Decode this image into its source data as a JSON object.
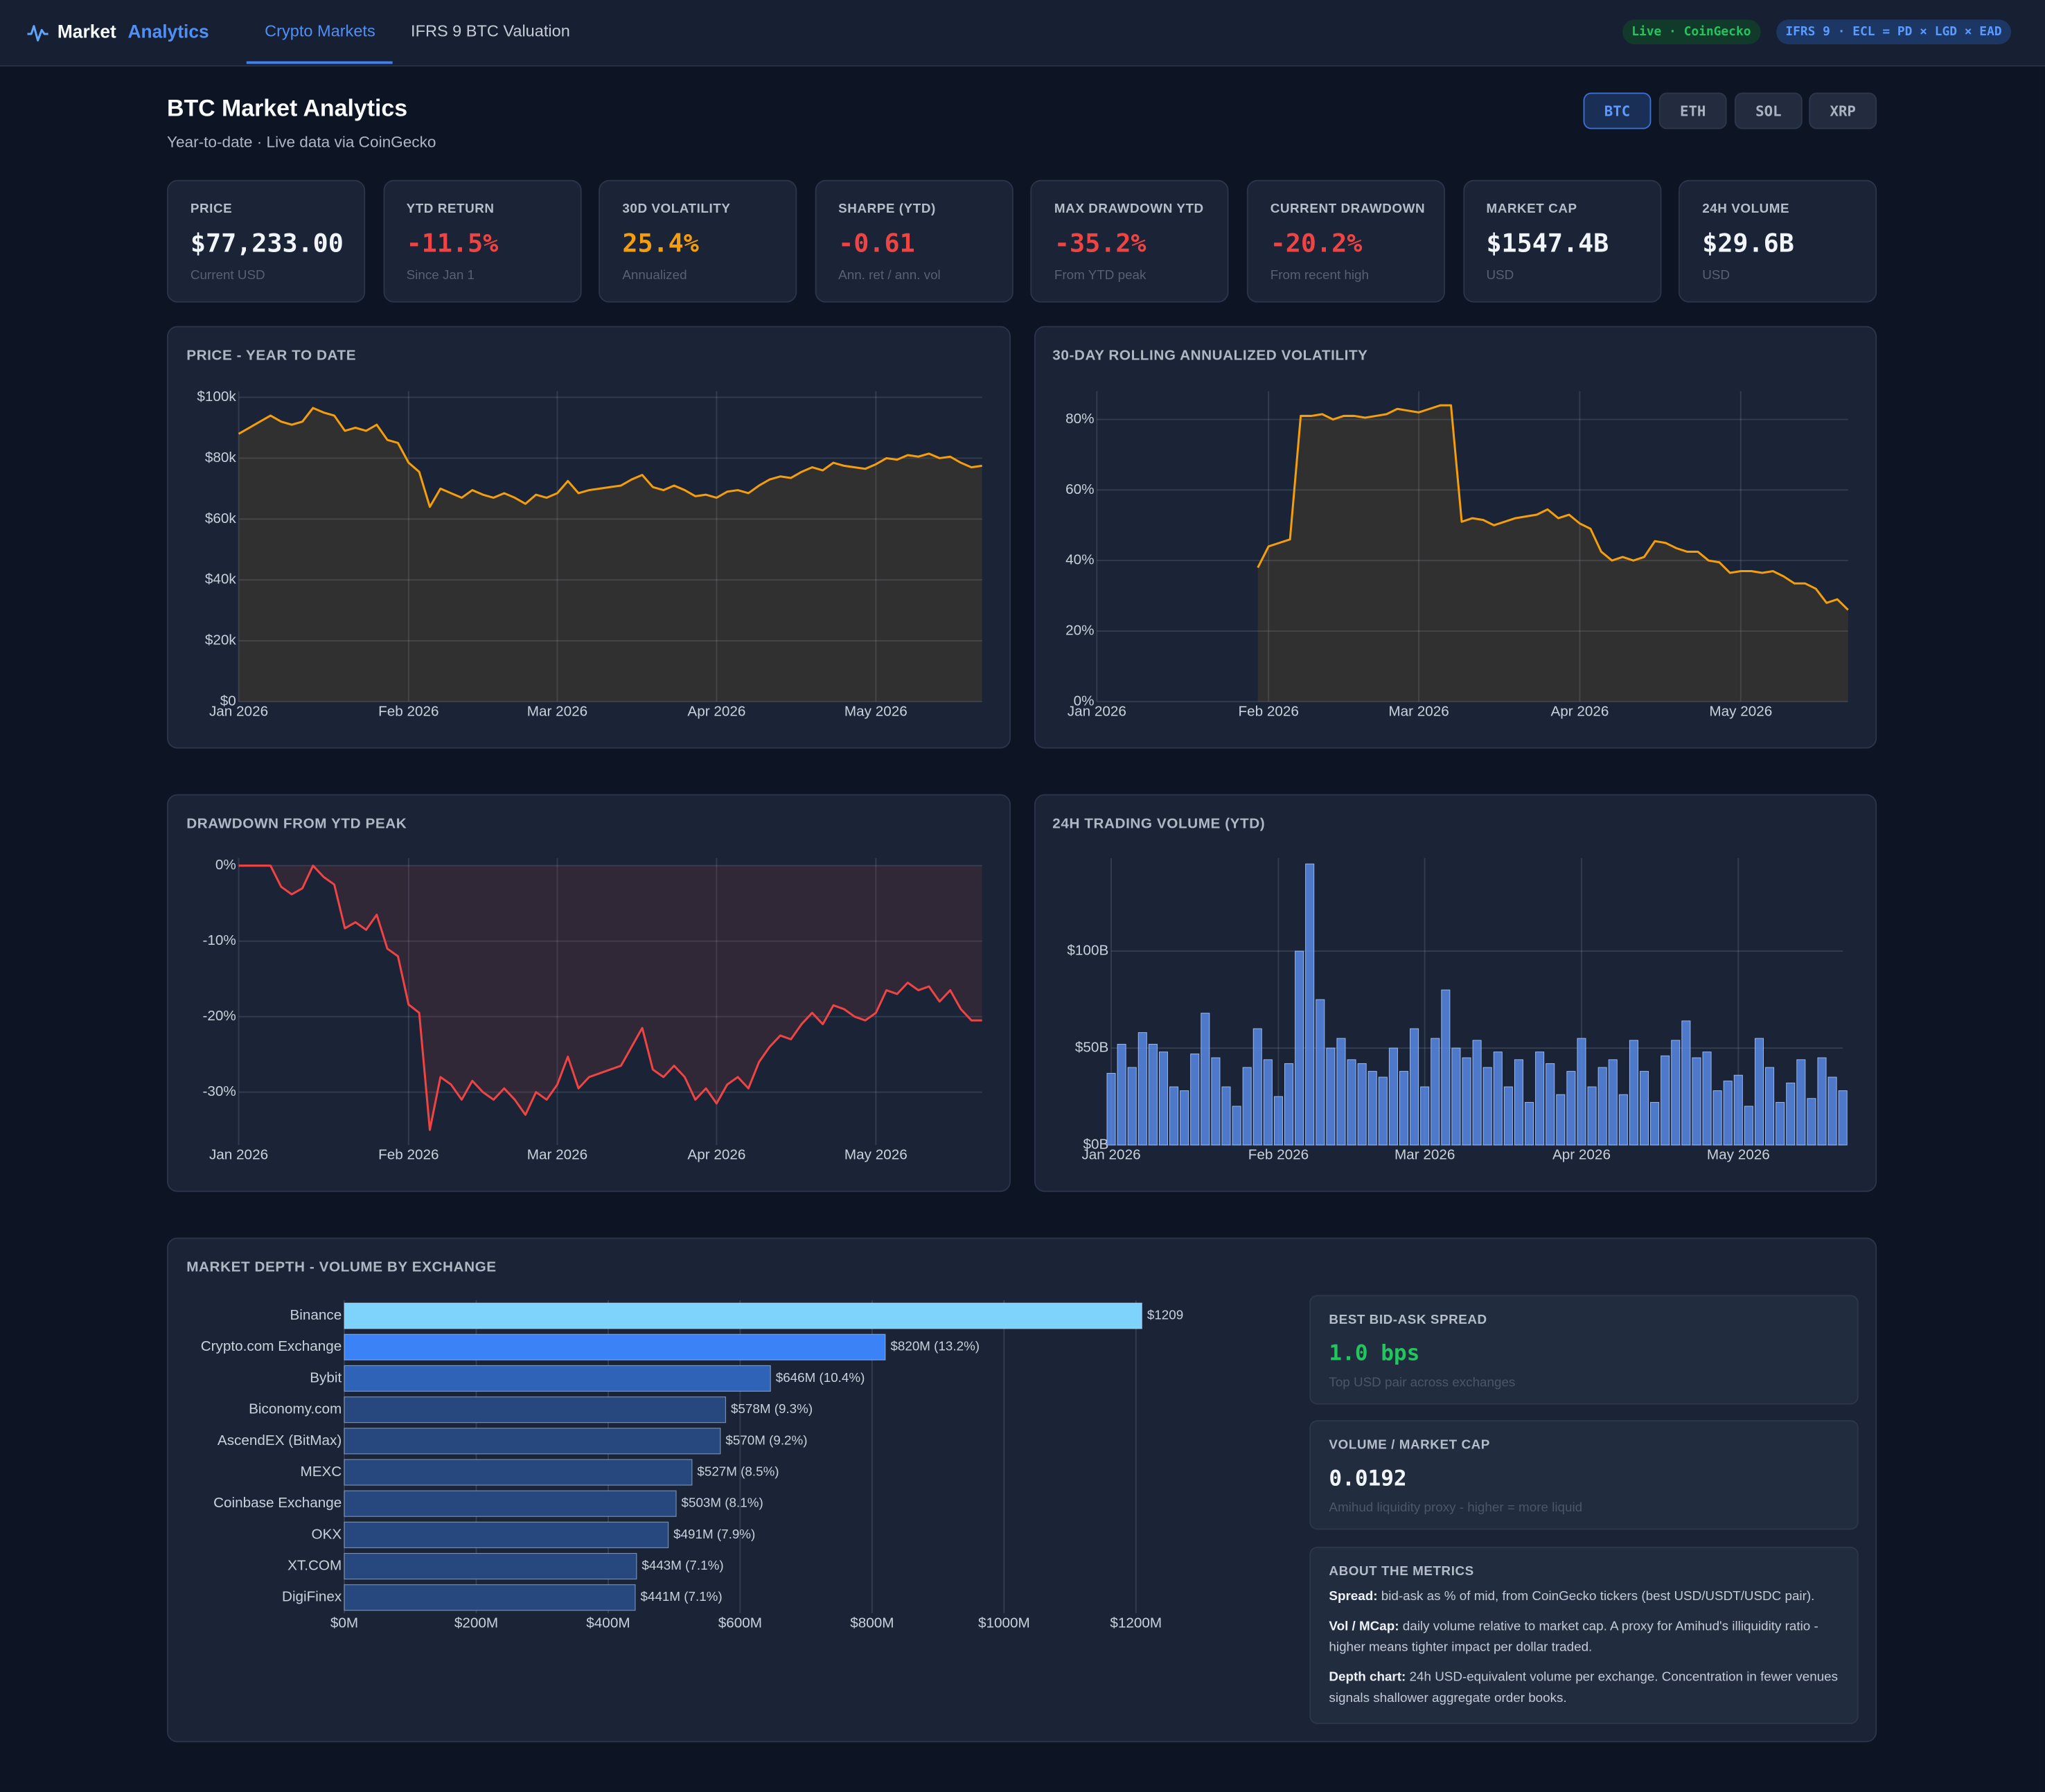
{
  "nav": {
    "brand_primary": "Market",
    "brand_accent": "Analytics",
    "tabs": [
      "Crypto Markets",
      "IFRS 9 BTC Valuation"
    ],
    "badges": [
      "Live · CoinGecko",
      "IFRS 9 · ECL = PD × LGD × EAD"
    ]
  },
  "header": {
    "title": "BTC Market Analytics",
    "subtitle": "Year-to-date · Live data via CoinGecko",
    "assets": [
      "BTC",
      "ETH",
      "SOL",
      "XRP"
    ]
  },
  "kpis": [
    {
      "label": "PRICE",
      "value": "$77,233.00",
      "note": "Current USD",
      "color": "#f1f5f9"
    },
    {
      "label": "YTD RETURN",
      "value": "-11.5%",
      "note": "Since Jan 1",
      "color": "#ef4444"
    },
    {
      "label": "30D VOLATILITY",
      "value": "25.4%",
      "note": "Annualized",
      "color": "#f59e0b"
    },
    {
      "label": "SHARPE (YTD)",
      "value": "-0.61",
      "note": "Ann. ret / ann. vol",
      "color": "#ef4444"
    },
    {
      "label": "MAX DRAWDOWN YTD",
      "value": "-35.2%",
      "note": "From YTD peak",
      "color": "#ef4444"
    },
    {
      "label": "CURRENT DRAWDOWN",
      "value": "-20.2%",
      "note": "From recent high",
      "color": "#ef4444"
    },
    {
      "label": "MARKET CAP",
      "value": "$1547.4B",
      "note": "USD",
      "color": "#f1f5f9"
    },
    {
      "label": "24H VOLUME",
      "value": "$29.6B",
      "note": "USD",
      "color": "#f1f5f9"
    }
  ],
  "chart_data": [
    {
      "type": "area",
      "title": "PRICE - YEAR TO DATE",
      "categories": [
        "Jan 2026",
        null,
        null,
        null,
        null,
        null,
        null,
        null,
        null,
        null,
        null,
        null,
        null,
        null,
        null,
        null,
        "Feb 2026",
        null,
        null,
        null,
        null,
        null,
        null,
        null,
        null,
        null,
        null,
        null,
        null,
        null,
        "Mar 2026",
        null,
        null,
        null,
        null,
        null,
        null,
        null,
        null,
        null,
        null,
        null,
        null,
        null,
        null,
        "Apr 2026",
        null,
        null,
        null,
        null,
        null,
        null,
        null,
        null,
        null,
        null,
        null,
        null,
        null,
        null,
        "May 2026",
        null,
        null,
        null,
        null,
        null,
        null,
        null,
        null,
        null,
        null
      ],
      "values": [
        88000,
        90000,
        92000,
        94000,
        92000,
        91000,
        92000,
        96500,
        95000,
        94000,
        89000,
        90000,
        89000,
        91000,
        86000,
        85000,
        78500,
        75500,
        64000,
        70000,
        68500,
        67000,
        69500,
        68000,
        67000,
        68500,
        67000,
        65000,
        68000,
        67000,
        68500,
        72500,
        68500,
        69500,
        70000,
        70500,
        71000,
        73000,
        74500,
        70500,
        69500,
        71000,
        69500,
        67500,
        68000,
        67000,
        69000,
        69500,
        68500,
        71000,
        73000,
        74000,
        73500,
        75500,
        77000,
        76000,
        78500,
        77500,
        77000,
        76500,
        78000,
        80000,
        79500,
        81000,
        80500,
        81500,
        80000,
        80500,
        78500,
        77000,
        77500
      ],
      "color": "#f59e0b",
      "ylim": [
        0,
        102000
      ],
      "yticks": [
        {
          "value": 0,
          "label": "$0"
        },
        {
          "value": 20000,
          "label": "$20k"
        },
        {
          "value": 40000,
          "label": "$40k"
        },
        {
          "value": 60000,
          "label": "$60k"
        },
        {
          "value": 80000,
          "label": "$80k"
        },
        {
          "value": 100000,
          "label": "$100k"
        }
      ],
      "grid": true
    },
    {
      "type": "area",
      "title": "30-DAY ROLLING ANNUALIZED VOLATILITY",
      "categories": [
        "Jan 2026",
        null,
        null,
        null,
        null,
        null,
        null,
        null,
        null,
        null,
        null,
        null,
        null,
        null,
        null,
        null,
        "Feb 2026",
        null,
        null,
        null,
        null,
        null,
        null,
        null,
        null,
        null,
        null,
        null,
        null,
        null,
        "Mar 2026",
        null,
        null,
        null,
        null,
        null,
        null,
        null,
        null,
        null,
        null,
        null,
        null,
        null,
        null,
        "Apr 2026",
        null,
        null,
        null,
        null,
        null,
        null,
        null,
        null,
        null,
        null,
        null,
        null,
        null,
        null,
        "May 2026",
        null,
        null,
        null,
        null,
        null,
        null,
        null,
        null,
        null,
        null
      ],
      "values": [
        null,
        null,
        null,
        null,
        null,
        null,
        null,
        null,
        null,
        null,
        null,
        null,
        null,
        null,
        null,
        38,
        44,
        45,
        46,
        81,
        81,
        81.5,
        80,
        81,
        81,
        80.5,
        81,
        81.5,
        83,
        82.5,
        82,
        83,
        84,
        84,
        51,
        52,
        51.5,
        50,
        51,
        52,
        52.5,
        53,
        54.5,
        52,
        53,
        50.5,
        49,
        42.5,
        40,
        41,
        40,
        41,
        45.5,
        45,
        43.5,
        42.5,
        42.5,
        40,
        39.5,
        36.5,
        37,
        37,
        36.5,
        37,
        35.5,
        33.5,
        33.5,
        32,
        28,
        29,
        26
      ],
      "color": "#f59e0b",
      "ylim": [
        0,
        88
      ],
      "yticks": [
        {
          "value": 0,
          "label": "0%"
        },
        {
          "value": 20,
          "label": "20%"
        },
        {
          "value": 40,
          "label": "40%"
        },
        {
          "value": 60,
          "label": "60%"
        },
        {
          "value": 80,
          "label": "80%"
        }
      ],
      "grid": true
    },
    {
      "type": "area",
      "title": "DRAWDOWN FROM YTD PEAK",
      "categories": [
        "Jan 2026",
        null,
        null,
        null,
        null,
        null,
        null,
        null,
        null,
        null,
        null,
        null,
        null,
        null,
        null,
        null,
        "Feb 2026",
        null,
        null,
        null,
        null,
        null,
        null,
        null,
        null,
        null,
        null,
        null,
        null,
        null,
        "Mar 2026",
        null,
        null,
        null,
        null,
        null,
        null,
        null,
        null,
        null,
        null,
        null,
        null,
        null,
        null,
        "Apr 2026",
        null,
        null,
        null,
        null,
        null,
        null,
        null,
        null,
        null,
        null,
        null,
        null,
        null,
        null,
        "May 2026",
        null,
        null,
        null,
        null,
        null,
        null,
        null,
        null,
        null,
        null
      ],
      "values": [
        0,
        0,
        0,
        0,
        -2.8,
        -3.8,
        -3,
        0,
        -1.5,
        -2.5,
        -8.3,
        -7.5,
        -8.5,
        -6.5,
        -11,
        -12,
        -18.4,
        -19.5,
        -35,
        -28,
        -29,
        -31,
        -28.5,
        -30,
        -31,
        -29.5,
        -31,
        -33,
        -30,
        -31,
        -29,
        -25.3,
        -29.5,
        -28,
        -27.5,
        -27,
        -26.5,
        -24,
        -21.5,
        -27,
        -28,
        -26.5,
        -28,
        -31,
        -29.5,
        -31.5,
        -29,
        -28,
        -29.5,
        -26,
        -24,
        -22.5,
        -23,
        -21,
        -19.5,
        -21,
        -18.5,
        -19,
        -20,
        -20.5,
        -19.5,
        -16.5,
        -17,
        -15.5,
        -16.5,
        -16,
        -18,
        -16.5,
        -19,
        -20.5,
        -20.5
      ],
      "color": "#ef4444",
      "ylim": [
        -37,
        1
      ],
      "yticks": [
        {
          "value": -30,
          "label": "-30%"
        },
        {
          "value": -20,
          "label": "-20%"
        },
        {
          "value": -10,
          "label": "-10%"
        },
        {
          "value": 0,
          "label": "0%"
        }
      ],
      "grid": true
    },
    {
      "type": "bar",
      "title": "24H TRADING VOLUME (YTD)",
      "categories": [
        "Jan 2026",
        null,
        null,
        null,
        null,
        null,
        null,
        null,
        null,
        null,
        null,
        null,
        null,
        null,
        null,
        null,
        "Feb 2026",
        null,
        null,
        null,
        null,
        null,
        null,
        null,
        null,
        null,
        null,
        null,
        null,
        null,
        "Mar 2026",
        null,
        null,
        null,
        null,
        null,
        null,
        null,
        null,
        null,
        null,
        null,
        null,
        null,
        null,
        "Apr 2026",
        null,
        null,
        null,
        null,
        null,
        null,
        null,
        null,
        null,
        null,
        null,
        null,
        null,
        null,
        "May 2026",
        null,
        null,
        null,
        null,
        null,
        null,
        null,
        null,
        null,
        null
      ],
      "values": [
        37,
        52,
        40,
        58,
        52,
        48,
        30,
        28,
        47,
        68,
        45,
        30,
        20,
        40,
        60,
        44,
        25,
        42,
        100,
        145,
        75,
        50,
        55,
        44,
        42,
        38,
        35,
        50,
        38,
        60,
        30,
        55,
        80,
        50,
        45,
        54,
        40,
        48,
        30,
        44,
        22,
        48,
        42,
        26,
        38,
        55,
        30,
        40,
        44,
        26,
        54,
        38,
        22,
        46,
        54,
        64,
        45,
        48,
        28,
        33,
        36,
        20,
        55,
        40,
        22,
        32,
        44,
        24,
        45,
        35,
        28
      ],
      "color": "#5b8def",
      "ylim": [
        0,
        148
      ],
      "yticks": [
        {
          "value": 0,
          "label": "$0B"
        },
        {
          "value": 50,
          "label": "$50B"
        },
        {
          "value": 100,
          "label": "$100B"
        }
      ],
      "grid": true
    },
    {
      "type": "hbar",
      "title": "MARKET DEPTH - VOLUME BY EXCHANGE",
      "categories": [
        "Binance",
        "Crypto.com Exchange",
        "Bybit",
        "Biconomy.com",
        "AscendEX (BitMax)",
        "MEXC",
        "Coinbase Exchange",
        "OKX",
        "XT.COM",
        "DigiFinex"
      ],
      "values": [
        1209,
        820,
        646,
        578,
        570,
        527,
        503,
        491,
        443,
        441
      ],
      "value_labels": [
        "$1209",
        "$820M (13.2%)",
        "$646M (10.4%)",
        "$578M (9.3%)",
        "$570M (9.2%)",
        "$527M (8.5%)",
        "$503M (8.1%)",
        "$491M (7.9%)",
        "$443M (7.1%)",
        "$441M (7.1%)"
      ],
      "colors": [
        "#7dd3fc",
        "#3b82f6",
        "#2f63b8",
        "#27487f",
        "#27487f",
        "#27487f",
        "#27487f",
        "#27487f",
        "#27487f",
        "#27487f"
      ],
      "xlim": [
        0,
        1200
      ],
      "xticks": [
        {
          "value": 0,
          "label": "$0M"
        },
        {
          "value": 200,
          "label": "$200M"
        },
        {
          "value": 400,
          "label": "$400M"
        },
        {
          "value": 600,
          "label": "$600M"
        },
        {
          "value": 800,
          "label": "$800M"
        },
        {
          "value": 1000,
          "label": "$1000M"
        },
        {
          "value": 1200,
          "label": "$1200M"
        }
      ],
      "grid": true
    }
  ],
  "panels": [
    {
      "title": "BEST BID-ASK SPREAD",
      "value": "1.0 bps",
      "note": "Top USD pair across exchanges",
      "color": "#22c55e"
    },
    {
      "title": "VOLUME / MARKET CAP",
      "value": "0.0192",
      "note": "Amihud liquidity proxy - higher = more liquid",
      "color": "#f1f5f9"
    }
  ],
  "about": {
    "title": "ABOUT THE METRICS",
    "items": [
      {
        "term": "Spread:",
        "text": "bid-ask as % of mid, from CoinGecko tickers (best USD/USDT/USDC pair)."
      },
      {
        "term": "Vol / MCap:",
        "text": "daily volume relative to market cap. A proxy for Amihud's illiquidity ratio - higher means tighter impact per dollar traded."
      },
      {
        "term": "Depth chart:",
        "text": "24h USD-equivalent volume per exchange. Concentration in fewer venues signals shallower aggregate order books."
      }
    ]
  }
}
